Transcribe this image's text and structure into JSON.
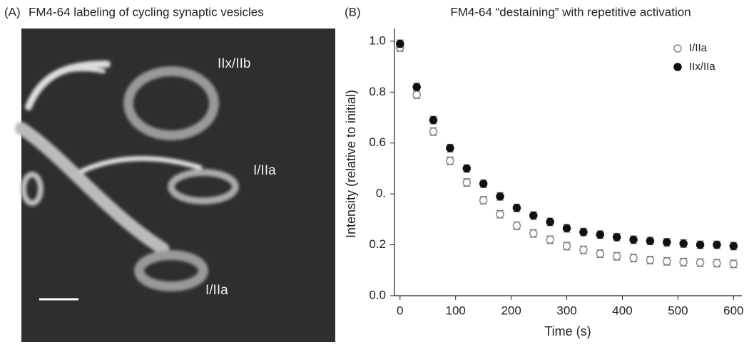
{
  "panel_a": {
    "label": "(A)",
    "title": "FM4-64 labeling of cycling synaptic vesicles",
    "annotations": [
      "IIx/IIb",
      "I/IIa",
      "I/IIa"
    ]
  },
  "chart_data": {
    "type": "scatter",
    "panel_label": "(B)",
    "title": "FM4-64 “destaining” with repetitive activation",
    "x_label": "Time (s)",
    "y_label": "Intensity (relative to initial)",
    "x": [
      0,
      30,
      60,
      90,
      120,
      150,
      180,
      210,
      240,
      270,
      300,
      330,
      360,
      390,
      420,
      450,
      480,
      510,
      540,
      570,
      600
    ],
    "series": [
      {
        "name": "I/IIa",
        "color": "#888888",
        "filled": false,
        "values": [
          0.975,
          0.79,
          0.645,
          0.53,
          0.445,
          0.375,
          0.32,
          0.275,
          0.245,
          0.22,
          0.195,
          0.18,
          0.165,
          0.155,
          0.148,
          0.14,
          0.135,
          0.132,
          0.13,
          0.128,
          0.125
        ],
        "errors": [
          0.015,
          0.015,
          0.015,
          0.015,
          0.015,
          0.015,
          0.015,
          0.015,
          0.015,
          0.015,
          0.015,
          0.015,
          0.015,
          0.015,
          0.015,
          0.015,
          0.015,
          0.015,
          0.015,
          0.015,
          0.015
        ]
      },
      {
        "name": "IIx/IIa",
        "color": "#111111",
        "filled": true,
        "values": [
          0.99,
          0.82,
          0.69,
          0.58,
          0.5,
          0.44,
          0.39,
          0.345,
          0.315,
          0.29,
          0.265,
          0.25,
          0.24,
          0.23,
          0.22,
          0.215,
          0.21,
          0.205,
          0.2,
          0.2,
          0.195
        ],
        "errors": [
          0.015,
          0.015,
          0.015,
          0.015,
          0.015,
          0.015,
          0.015,
          0.015,
          0.015,
          0.015,
          0.015,
          0.015,
          0.015,
          0.015,
          0.015,
          0.015,
          0.015,
          0.015,
          0.015,
          0.015,
          0.015
        ]
      }
    ],
    "xlim": [
      -10,
      615
    ],
    "xticks": [
      0,
      100,
      200,
      300,
      400,
      500,
      600
    ],
    "ylim": [
      0,
      1.05
    ],
    "yticks": [
      {
        "value": 0,
        "label": "0.0"
      },
      0.2,
      {
        "value": 0.4,
        "label": "0."
      },
      0.6,
      0.8,
      {
        "value": 1,
        "label": "1.0"
      }
    ],
    "legend": "upper right"
  }
}
